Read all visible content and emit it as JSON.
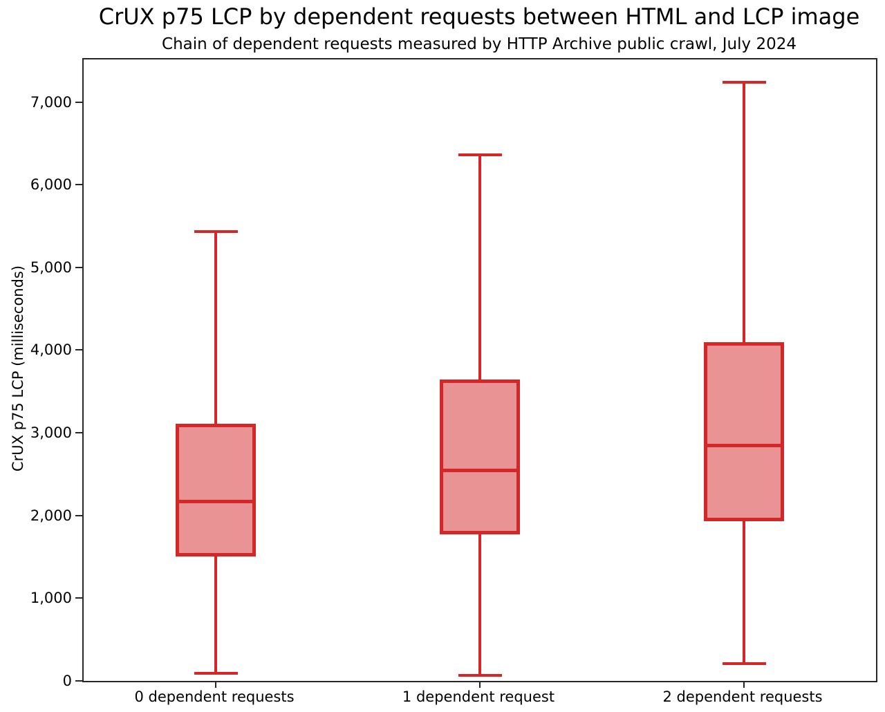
{
  "chart_data": {
    "type": "boxplot",
    "title": "CrUX p75 LCP by dependent requests between HTML and LCP image",
    "subtitle": "Chain of dependent requests measured by HTTP Archive public crawl, July 2024",
    "ylabel": "CrUX p75 LCP (milliseconds)",
    "xlabel": "",
    "ylim": [
      0,
      7515
    ],
    "grid": false,
    "legend": null,
    "yticks": [
      {
        "value": 0,
        "label": "0"
      },
      {
        "value": 1000,
        "label": "1,000"
      },
      {
        "value": 2000,
        "label": "2,000"
      },
      {
        "value": 3000,
        "label": "3,000"
      },
      {
        "value": 4000,
        "label": "4,000"
      },
      {
        "value": 5000,
        "label": "5,000"
      },
      {
        "value": 6000,
        "label": "6,000"
      },
      {
        "value": 7000,
        "label": "7,000"
      }
    ],
    "categories": [
      "0 dependent requests",
      "1 dependent request",
      "2 dependent requests"
    ],
    "boxes": [
      {
        "category": "0 dependent requests",
        "whisker_low": 90,
        "q1": 1530,
        "median": 2165,
        "q3": 3085,
        "whisker_high": 5430
      },
      {
        "category": "1 dependent request",
        "whisker_low": 70,
        "q1": 1795,
        "median": 2545,
        "q3": 3620,
        "whisker_high": 6360
      },
      {
        "category": "2 dependent requests",
        "whisker_low": 210,
        "q1": 1960,
        "median": 2845,
        "q3": 4070,
        "whisker_high": 7240
      }
    ],
    "colors": {
      "box_edge": "#d62728",
      "box_fill": "#ea9394",
      "axis": "#262626",
      "text": "#000000"
    }
  }
}
